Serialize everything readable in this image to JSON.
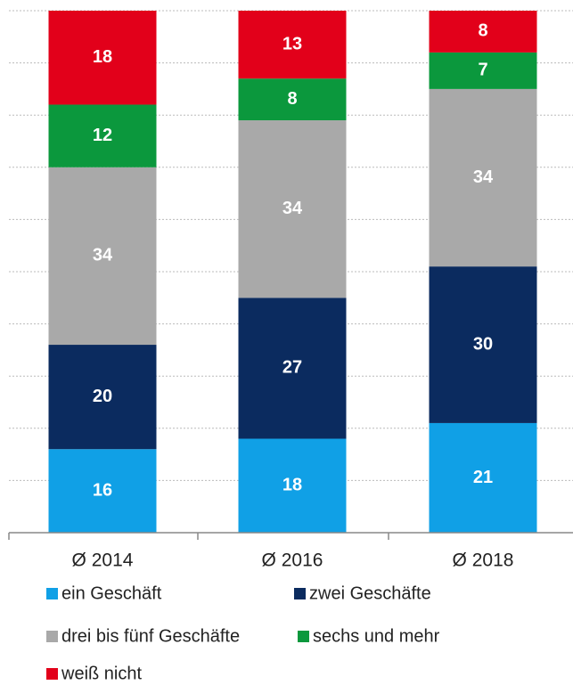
{
  "chart_data": {
    "type": "stacked_bar",
    "categories": [
      "Ø 2014",
      "Ø 2016",
      "Ø 2018"
    ],
    "series": [
      {
        "name": "ein Geschäft",
        "color": "#10a0e6",
        "values": [
          16,
          18,
          21
        ]
      },
      {
        "name": "zwei Geschäfte",
        "color": "#0b2b5f",
        "values": [
          20,
          27,
          30
        ]
      },
      {
        "name": "drei bis fünf Geschäfte",
        "color": "#a9a9a9",
        "values": [
          34,
          34,
          34
        ]
      },
      {
        "name": "sechs und mehr",
        "color": "#0b983d",
        "values": [
          12,
          8,
          7
        ]
      },
      {
        "name": "weiß nicht",
        "color": "#e2001a",
        "values": [
          18,
          13,
          8
        ]
      }
    ],
    "ylim": [
      0,
      100
    ],
    "yticks": [
      0,
      10,
      20,
      30,
      40,
      50,
      60,
      70,
      80,
      90,
      100
    ],
    "grid": true
  }
}
